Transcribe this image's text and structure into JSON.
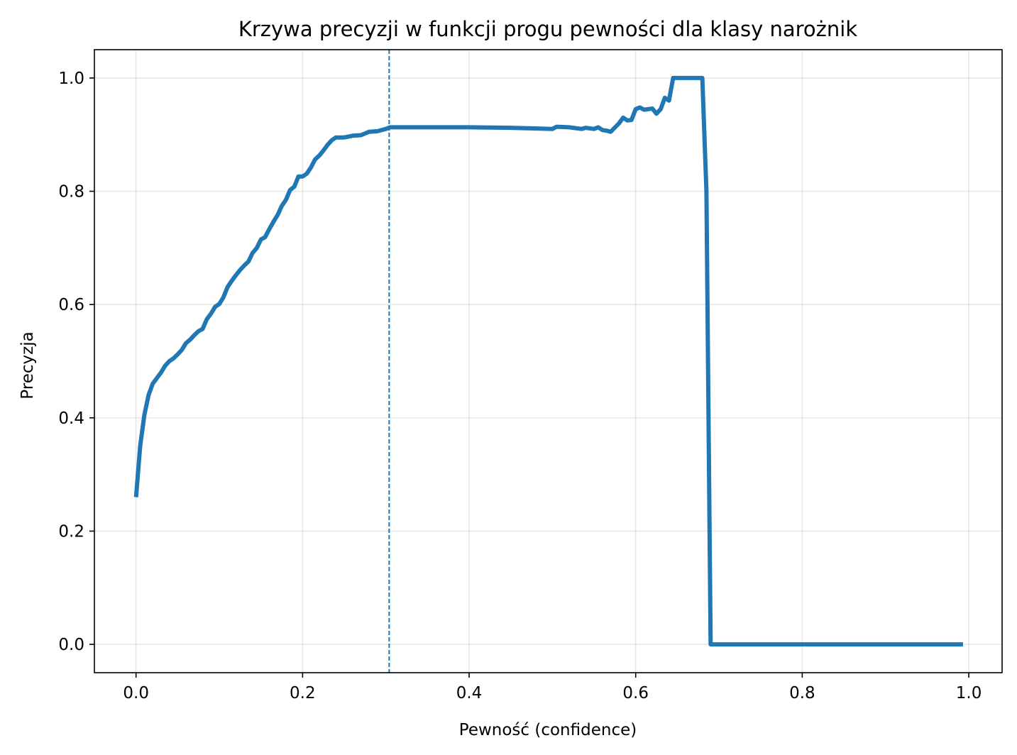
{
  "chart_data": {
    "type": "line",
    "title": "Krzywa precyzji w funkcji progu pewności dla klasy narożnik",
    "xlabel": "Pewność (confidence)",
    "ylabel": "Precyzja",
    "xlim": [
      -0.05,
      1.04
    ],
    "ylim": [
      -0.05,
      1.05
    ],
    "xticks": [
      0.0,
      0.2,
      0.4,
      0.6,
      0.8,
      1.0
    ],
    "xtick_labels": [
      "0.0",
      "0.2",
      "0.4",
      "0.6",
      "0.8",
      "1.0"
    ],
    "yticks": [
      0.0,
      0.2,
      0.4,
      0.6,
      0.8,
      1.0
    ],
    "ytick_labels": [
      "0.0",
      "0.2",
      "0.4",
      "0.6",
      "0.8",
      "1.0"
    ],
    "grid": true,
    "legend": "none",
    "threshold_line": {
      "x": 0.304,
      "style": "dashed",
      "color": "#1f77b4"
    },
    "series": [
      {
        "color": "#1f77b4",
        "x": [
          0.0,
          0.005,
          0.01,
          0.015,
          0.02,
          0.025,
          0.03,
          0.035,
          0.04,
          0.045,
          0.05,
          0.055,
          0.06,
          0.065,
          0.07,
          0.075,
          0.08,
          0.085,
          0.09,
          0.095,
          0.1,
          0.105,
          0.11,
          0.115,
          0.12,
          0.125,
          0.13,
          0.135,
          0.14,
          0.145,
          0.15,
          0.155,
          0.16,
          0.165,
          0.17,
          0.175,
          0.18,
          0.185,
          0.19,
          0.195,
          0.2,
          0.205,
          0.21,
          0.215,
          0.22,
          0.225,
          0.23,
          0.235,
          0.24,
          0.25,
          0.26,
          0.27,
          0.28,
          0.29,
          0.3,
          0.305,
          0.35,
          0.4,
          0.45,
          0.5,
          0.505,
          0.52,
          0.535,
          0.54,
          0.55,
          0.555,
          0.56,
          0.565,
          0.57,
          0.58,
          0.585,
          0.59,
          0.595,
          0.6,
          0.605,
          0.61,
          0.62,
          0.625,
          0.63,
          0.635,
          0.64,
          0.645,
          0.65,
          0.66,
          0.67,
          0.68,
          0.685,
          0.69,
          0.7,
          0.8,
          0.9,
          0.993
        ],
        "y": [
          0.26,
          0.35,
          0.405,
          0.44,
          0.46,
          0.47,
          0.48,
          0.492,
          0.5,
          0.505,
          0.512,
          0.52,
          0.532,
          0.538,
          0.546,
          0.553,
          0.557,
          0.574,
          0.584,
          0.596,
          0.601,
          0.613,
          0.631,
          0.642,
          0.652,
          0.661,
          0.669,
          0.676,
          0.691,
          0.7,
          0.715,
          0.719,
          0.733,
          0.746,
          0.758,
          0.774,
          0.785,
          0.802,
          0.808,
          0.826,
          0.826,
          0.831,
          0.842,
          0.856,
          0.863,
          0.872,
          0.882,
          0.89,
          0.895,
          0.895,
          0.898,
          0.899,
          0.905,
          0.906,
          0.91,
          0.913,
          0.913,
          0.913,
          0.912,
          0.91,
          0.914,
          0.913,
          0.91,
          0.912,
          0.91,
          0.913,
          0.908,
          0.907,
          0.905,
          0.92,
          0.93,
          0.925,
          0.926,
          0.945,
          0.948,
          0.944,
          0.946,
          0.937,
          0.945,
          0.965,
          0.96,
          1.0,
          1.0,
          1.0,
          1.0,
          1.0,
          0.8,
          0.0,
          0.0,
          0.0,
          0.0,
          0.0
        ]
      }
    ]
  }
}
